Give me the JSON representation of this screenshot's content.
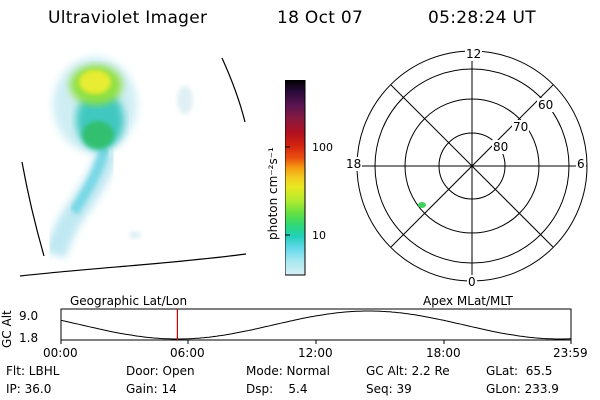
{
  "header": {
    "title": "Ultraviolet Imager",
    "date": "18 Oct 07",
    "time": "05:28:24 UT"
  },
  "colorbar": {
    "unit_label": "photon cm⁻²s⁻¹",
    "ticks": [
      "100",
      "10"
    ],
    "colors": [
      "#000000",
      "#2a0a3a",
      "#5a1550",
      "#8a1a40",
      "#b01020",
      "#d02010",
      "#ea5010",
      "#f49a10",
      "#f3cb22",
      "#e8e820",
      "#b0ea30",
      "#68e040",
      "#30d870",
      "#20d0b8",
      "#60d8e8",
      "#a8e8f0",
      "#d8f0f4"
    ]
  },
  "polar_plot": {
    "mlt_labels": {
      "top": "12",
      "left": "18",
      "right": "6",
      "bottom": "0"
    },
    "lat_labels": [
      "60",
      "70",
      "80"
    ],
    "spot_color": "#40d060"
  },
  "timeline": {
    "left_label": "Geographic Lat/Lon",
    "right_label": "Apex MLat/MLT",
    "axis_label": "GC Alt",
    "y_top": "9.0",
    "y_bottom": "1.8",
    "x_ticks": [
      "00:00",
      "06:00",
      "12:00",
      "18:00",
      "23:59"
    ],
    "marker_color": "#cc0000",
    "current_time_fraction": 0.2282
  },
  "info": {
    "filter": "Flt: LBHL",
    "ip": "IP: 36.0",
    "door": "Door: Open",
    "gain": "Gain: 14",
    "mode": "Mode: Normal",
    "dsp": "Dsp:    5.4",
    "gc_alt": "GC Alt: 2.2 Re",
    "seq": "Seq: 39",
    "glat": "GLat:  65.5",
    "glon": "GLon: 233.9"
  }
}
